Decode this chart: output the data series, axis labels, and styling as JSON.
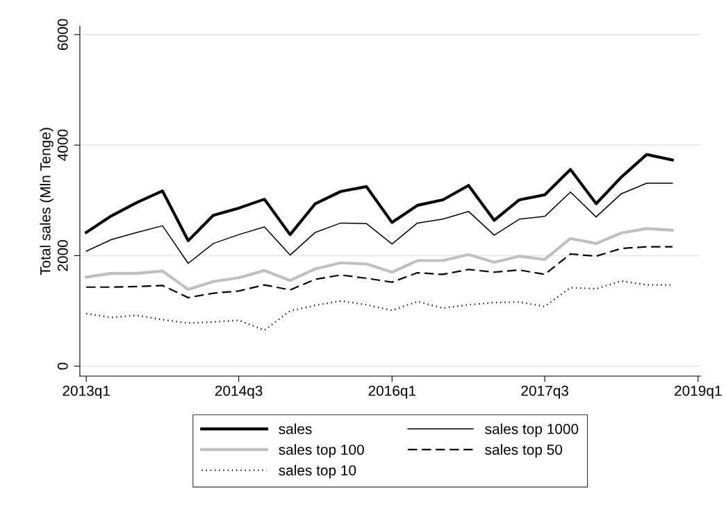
{
  "chart_data": {
    "type": "line",
    "ylabel": "Total sales (Mln Tenge)",
    "x": [
      "2013-01",
      "2013-04",
      "2013-07",
      "2013-10",
      "2014-01",
      "2014-04",
      "2014-07",
      "2014-10",
      "2015-01",
      "2015-04",
      "2015-07",
      "2015-10",
      "2016-01",
      "2016-04",
      "2016-07",
      "2016-10",
      "2017-01",
      "2017-04",
      "2017-07",
      "2017-10",
      "2018-01",
      "2018-04",
      "2018-07",
      "2018-10"
    ],
    "xlim": [
      "2012-12-09",
      "2019-01-10"
    ],
    "xticks": [
      {
        "value": "2013-01",
        "label": "2013q1"
      },
      {
        "value": "2014-07",
        "label": "2014q3"
      },
      {
        "value": "2016-01",
        "label": "2016q1"
      },
      {
        "value": "2017-07",
        "label": "2017q3"
      },
      {
        "value": "2019-01",
        "label": "2019q1"
      }
    ],
    "ylim": [
      -180,
      6150
    ],
    "yticks": [
      0,
      2000,
      4000,
      6000
    ],
    "grid": "y",
    "legend": "bottom",
    "marker": "none",
    "series": [
      {
        "name": "sales",
        "color": "#000000",
        "line_style": "solid",
        "values": [
          2420,
          2720,
          2960,
          3170,
          2270,
          2730,
          2860,
          3020,
          2380,
          2940,
          3160,
          3250,
          2600,
          2910,
          3010,
          3270,
          2640,
          3010,
          3100,
          3560,
          2940,
          3420,
          3830,
          3730
        ]
      },
      {
        "name": "sales top 1000",
        "color": "#000000",
        "line_style": "solid",
        "values": [
          2080,
          2290,
          2420,
          2540,
          1860,
          2220,
          2380,
          2520,
          2010,
          2420,
          2590,
          2580,
          2210,
          2590,
          2660,
          2800,
          2370,
          2660,
          2710,
          3150,
          2700,
          3120,
          3310,
          3310
        ]
      },
      {
        "name": "sales top 100",
        "color": "#c0c0c0",
        "line_style": "solid",
        "values": [
          1610,
          1680,
          1680,
          1720,
          1390,
          1530,
          1600,
          1730,
          1550,
          1760,
          1870,
          1850,
          1700,
          1910,
          1910,
          2020,
          1880,
          1990,
          1930,
          2310,
          2220,
          2410,
          2490,
          2460
        ]
      },
      {
        "name": "sales top 50",
        "color": "#000000",
        "line_style": "dashed",
        "values": [
          1430,
          1430,
          1440,
          1460,
          1240,
          1320,
          1360,
          1470,
          1380,
          1570,
          1650,
          1590,
          1520,
          1690,
          1660,
          1750,
          1700,
          1740,
          1660,
          2030,
          1990,
          2130,
          2160,
          2160
        ]
      },
      {
        "name": "sales top 10",
        "color": "#000000",
        "line_style": "dotted",
        "values": [
          950,
          880,
          920,
          840,
          780,
          800,
          830,
          650,
          1000,
          1100,
          1180,
          1110,
          1010,
          1170,
          1050,
          1110,
          1150,
          1160,
          1080,
          1420,
          1400,
          1540,
          1470,
          1470
        ]
      }
    ]
  }
}
